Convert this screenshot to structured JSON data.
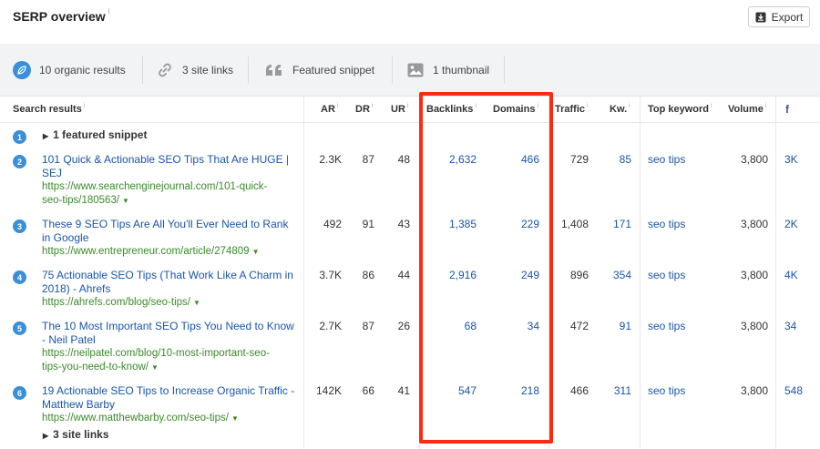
{
  "header": {
    "title": "SERP overview",
    "info_mark": "i",
    "export_label": "Export"
  },
  "summary": {
    "organic": "10 organic results",
    "site_links": "3 site links",
    "featured_snippet": "Featured snippet",
    "thumbnail": "1 thumbnail"
  },
  "columns": {
    "search_results": "Search results",
    "ar": "AR",
    "dr": "DR",
    "ur": "UR",
    "backlinks": "Backlinks",
    "domains": "Domains",
    "traffic": "Traffic",
    "kw": "Kw.",
    "top_keyword": "Top keyword",
    "volume": "Volume",
    "facebook": "f"
  },
  "featured_row": {
    "num": "1",
    "label": "1 featured snippet"
  },
  "rows": [
    {
      "num": "2",
      "title1": "101 Quick & Actionable SEO Tips That Are HUGE |",
      "title2": "SEJ",
      "url1": "https://www.searchenginejournal.com/101-quick-",
      "url2": "seo-tips/180563/",
      "ar": "2.3K",
      "dr": "87",
      "ur": "48",
      "backlinks": "2,632",
      "domains": "466",
      "traffic": "729",
      "kw": "85",
      "top_keyword": "seo tips",
      "volume": "3,800",
      "fb": "3K"
    },
    {
      "num": "3",
      "title1": "These 9 SEO Tips Are All You'll Ever Need to Rank",
      "title2": "in Google",
      "url1": "https://www.entrepreneur.com/article/274809",
      "url2": "",
      "ar": "492",
      "dr": "91",
      "ur": "43",
      "backlinks": "1,385",
      "domains": "229",
      "traffic": "1,408",
      "kw": "171",
      "top_keyword": "seo tips",
      "volume": "3,800",
      "fb": "2K"
    },
    {
      "num": "4",
      "title1": "75 Actionable SEO Tips (That Work Like A Charm in",
      "title2": "2018) - Ahrefs",
      "url1": "https://ahrefs.com/blog/seo-tips/",
      "url2": "",
      "ar": "3.7K",
      "dr": "86",
      "ur": "44",
      "backlinks": "2,916",
      "domains": "249",
      "traffic": "896",
      "kw": "354",
      "top_keyword": "seo tips",
      "volume": "3,800",
      "fb": "4K"
    },
    {
      "num": "5",
      "title1": "The 10 Most Important SEO Tips You Need to Know",
      "title2": "- Neil Patel",
      "url1": "https://neilpatel.com/blog/10-most-important-seo-",
      "url2": "tips-you-need-to-know/",
      "ar": "2.7K",
      "dr": "87",
      "ur": "26",
      "backlinks": "68",
      "domains": "34",
      "traffic": "472",
      "kw": "91",
      "top_keyword": "seo tips",
      "volume": "3,800",
      "fb": "34"
    },
    {
      "num": "6",
      "title1": "19 Actionable SEO Tips to Increase Organic Traffic -",
      "title2": "Matthew Barby",
      "url1": "https://www.matthewbarby.com/seo-tips/",
      "url2": "",
      "ar": "142K",
      "dr": "66",
      "ur": "41",
      "backlinks": "547",
      "domains": "218",
      "traffic": "466",
      "kw": "311",
      "top_keyword": "seo tips",
      "volume": "3,800",
      "fb": "548"
    }
  ],
  "site_links_row": "3 site links",
  "colors": {
    "link": "#1a55a7",
    "url": "#3a8a2a",
    "badge": "#3a8fd9",
    "highlight": "#ff2a12"
  }
}
